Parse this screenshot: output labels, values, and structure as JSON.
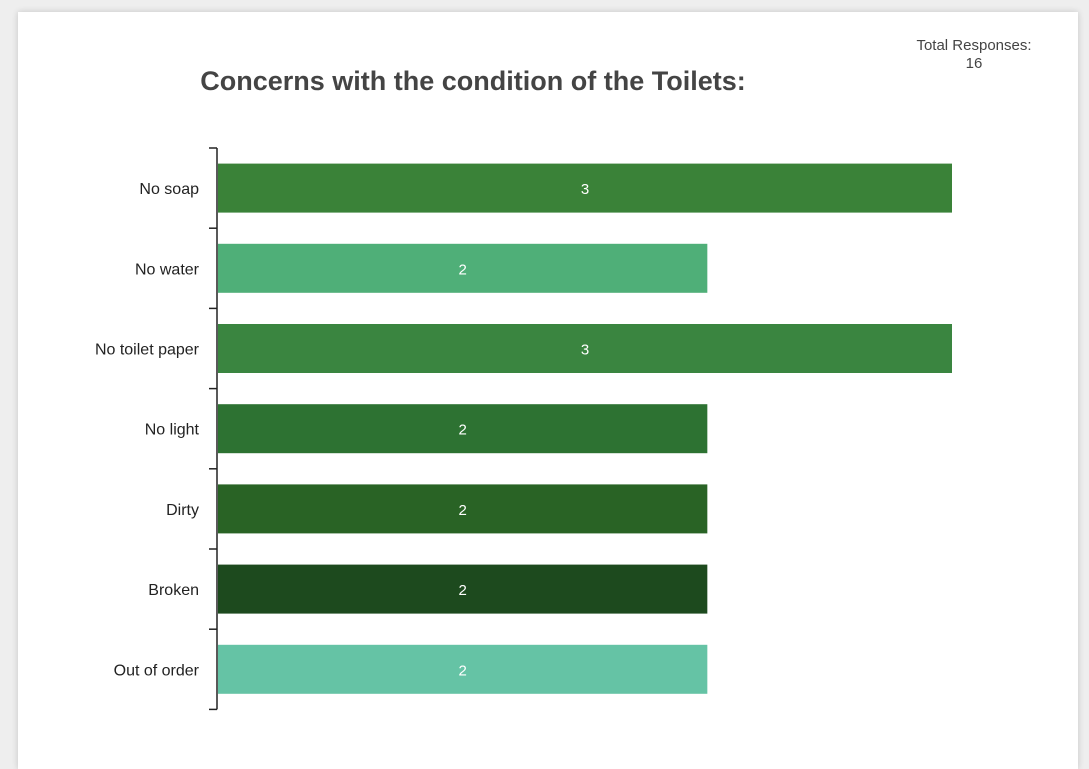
{
  "total_responses": {
    "label": "Total Responses:",
    "value": "16"
  },
  "chart_data": {
    "type": "bar",
    "orientation": "horizontal",
    "title": "Concerns with the condition of the Toilets:",
    "xlabel": "",
    "ylabel": "",
    "xlim": [
      0,
      3
    ],
    "grid": false,
    "categories": [
      "No soap",
      "No water",
      "No toilet paper",
      "No light",
      "Dirty",
      "Broken",
      "Out of order"
    ],
    "values": [
      3,
      2,
      3,
      2,
      2,
      2,
      2
    ],
    "colors": [
      "#3a8238",
      "#4faf78",
      "#3a8540",
      "#2d7232",
      "#296325",
      "#1d4a1e",
      "#65c3a5"
    ],
    "data_labels": [
      "3",
      "2",
      "3",
      "2",
      "2",
      "2",
      "2"
    ]
  }
}
